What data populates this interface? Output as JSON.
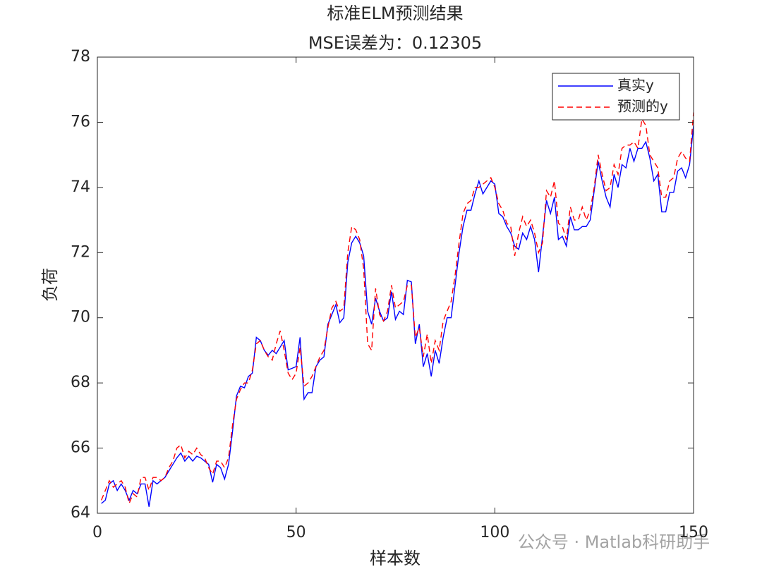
{
  "chart_data": {
    "type": "line",
    "title": [
      "标准ELM预测结果",
      "MSE误差为：0.12305"
    ],
    "x_label": "样本数",
    "y_label": "负荷",
    "xlim": [
      0,
      150
    ],
    "xticks": [
      0,
      50,
      100,
      150
    ],
    "ylim": [
      64,
      78
    ],
    "yticks": [
      64,
      66,
      68,
      70,
      72,
      74,
      76,
      78
    ],
    "grid": false,
    "legend": "upper right",
    "watermark": "公众号 · Matlab科研助手",
    "x": [
      1,
      2,
      3,
      4,
      5,
      6,
      7,
      8,
      9,
      10,
      11,
      12,
      13,
      14,
      15,
      16,
      17,
      18,
      19,
      20,
      21,
      22,
      23,
      24,
      25,
      26,
      27,
      28,
      29,
      30,
      31,
      32,
      33,
      34,
      35,
      36,
      37,
      38,
      39,
      40,
      41,
      42,
      43,
      44,
      45,
      46,
      47,
      48,
      49,
      50,
      51,
      52,
      53,
      54,
      55,
      56,
      57,
      58,
      59,
      60,
      61,
      62,
      63,
      64,
      65,
      66,
      67,
      68,
      69,
      70,
      71,
      72,
      73,
      74,
      75,
      76,
      77,
      78,
      79,
      80,
      81,
      82,
      83,
      84,
      85,
      86,
      87,
      88,
      89,
      90,
      91,
      92,
      93,
      94,
      95,
      96,
      97,
      98,
      99,
      100,
      101,
      102,
      103,
      104,
      105,
      106,
      107,
      108,
      109,
      110,
      111,
      112,
      113,
      114,
      115,
      116,
      117,
      118,
      119,
      120,
      121,
      122,
      123,
      124,
      125,
      126,
      127,
      128,
      129,
      130,
      131,
      132,
      133,
      134,
      135,
      136,
      137,
      138,
      139,
      140,
      141,
      142,
      143,
      144,
      145,
      146,
      147,
      148,
      149,
      150
    ],
    "series": [
      {
        "name": "真实y",
        "color": "#0000ff",
        "dash": "solid",
        "values": [
          64.3,
          64.4,
          64.9,
          65.0,
          64.7,
          64.9,
          64.7,
          64.4,
          64.7,
          64.6,
          64.9,
          64.9,
          64.2,
          65.0,
          64.9,
          65.0,
          65.1,
          65.3,
          65.5,
          65.7,
          65.85,
          65.6,
          65.75,
          65.6,
          65.75,
          65.7,
          65.6,
          65.5,
          64.95,
          65.5,
          65.4,
          65.05,
          65.5,
          66.5,
          67.6,
          67.9,
          67.85,
          68.2,
          68.3,
          69.4,
          69.3,
          69.0,
          68.85,
          69.0,
          68.9,
          69.1,
          69.3,
          68.4,
          68.45,
          68.5,
          69.4,
          67.5,
          67.7,
          67.7,
          68.5,
          68.7,
          68.8,
          69.8,
          70.1,
          70.4,
          69.85,
          70.0,
          71.7,
          72.3,
          72.5,
          72.3,
          71.9,
          70.2,
          69.8,
          70.6,
          70.2,
          69.9,
          70.0,
          70.8,
          69.95,
          70.2,
          70.1,
          71.15,
          71.1,
          69.2,
          69.8,
          68.5,
          68.9,
          68.2,
          69.0,
          68.6,
          69.4,
          70.0,
          70.0,
          71.0,
          72.0,
          72.8,
          73.3,
          73.3,
          73.8,
          74.2,
          73.8,
          74.0,
          74.2,
          74.1,
          73.2,
          73.1,
          72.8,
          72.6,
          72.2,
          72.1,
          72.6,
          72.4,
          72.8,
          72.4,
          71.4,
          72.5,
          73.6,
          73.2,
          73.7,
          72.4,
          72.5,
          72.2,
          73.1,
          72.7,
          72.7,
          72.8,
          72.8,
          73.0,
          73.9,
          74.8,
          74.2,
          73.7,
          73.4,
          74.4,
          74.0,
          74.7,
          74.6,
          75.2,
          74.8,
          75.2,
          75.2,
          75.4,
          74.9,
          74.2,
          74.4,
          73.25,
          73.25,
          73.85,
          73.85,
          74.5,
          74.6,
          74.3,
          74.7,
          75.9
        ]
      },
      {
        "name": "预测的y",
        "color": "#ff0000",
        "dash": "dashed",
        "values": [
          64.4,
          64.7,
          65.0,
          64.8,
          64.9,
          65.0,
          64.8,
          64.3,
          64.6,
          64.5,
          65.1,
          65.1,
          64.7,
          65.1,
          65.1,
          65.0,
          65.1,
          65.4,
          65.6,
          66.0,
          66.1,
          65.7,
          65.9,
          65.8,
          66.0,
          65.8,
          65.7,
          65.4,
          65.2,
          65.6,
          65.6,
          65.4,
          65.7,
          66.7,
          67.5,
          67.8,
          68.0,
          68.0,
          68.4,
          69.2,
          69.3,
          69.0,
          68.8,
          68.7,
          69.2,
          69.6,
          69.0,
          68.3,
          68.1,
          68.3,
          69.1,
          67.9,
          68.0,
          68.2,
          68.5,
          68.8,
          69.0,
          69.7,
          70.3,
          70.5,
          70.2,
          70.3,
          72.0,
          72.8,
          72.7,
          72.4,
          71.5,
          69.2,
          69.0,
          70.9,
          70.1,
          69.9,
          70.2,
          71.0,
          70.3,
          70.4,
          70.5,
          71.0,
          71.0,
          69.4,
          69.7,
          68.8,
          69.5,
          68.6,
          69.3,
          69.0,
          69.9,
          70.2,
          70.5,
          71.3,
          72.3,
          73.2,
          73.5,
          73.6,
          74.0,
          74.0,
          74.1,
          74.2,
          74.3,
          74.0,
          73.5,
          73.3,
          72.9,
          72.8,
          71.9,
          72.6,
          73.1,
          72.8,
          73.0,
          72.6,
          72.0,
          72.3,
          73.9,
          73.7,
          74.2,
          72.9,
          72.8,
          72.4,
          73.4,
          73.0,
          73.0,
          73.4,
          73.0,
          73.3,
          74.0,
          75.0,
          74.4,
          73.9,
          74.0,
          74.7,
          74.4,
          75.2,
          75.3,
          75.3,
          75.4,
          75.2,
          76.1,
          75.9,
          75.0,
          74.8,
          74.6,
          73.7,
          73.7,
          74.2,
          74.3,
          74.9,
          75.1,
          74.9,
          74.8,
          76.3
        ]
      }
    ]
  }
}
